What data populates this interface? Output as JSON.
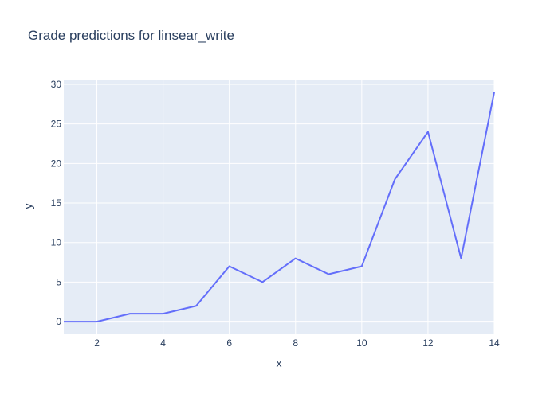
{
  "chart_data": {
    "type": "line",
    "title": "Grade predictions for linsear_write",
    "xlabel": "x",
    "ylabel": "y",
    "x": [
      1,
      2,
      3,
      4,
      5,
      6,
      7,
      8,
      9,
      10,
      11,
      12,
      13,
      14
    ],
    "series": [
      {
        "values": [
          0,
          0,
          1,
          1,
          2,
          7,
          5,
          8,
          6,
          7,
          18,
          24,
          8,
          29
        ],
        "color": "#636efa"
      }
    ],
    "xlim": [
      1,
      14
    ],
    "ylim": [
      -1.6,
      30.6
    ],
    "xticks": [
      2,
      4,
      6,
      8,
      10,
      12,
      14
    ],
    "yticks": [
      0,
      5,
      10,
      15,
      20,
      25,
      30
    ],
    "grid": true,
    "plot_background": "#e5ecf6",
    "grid_color": "#ffffff",
    "text_color": "#2a3f5f"
  }
}
